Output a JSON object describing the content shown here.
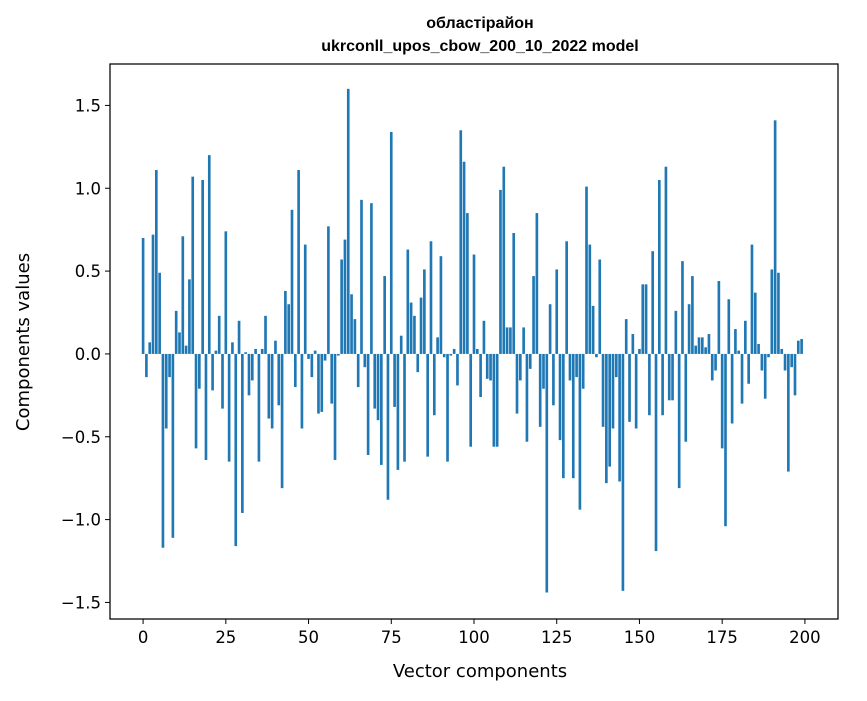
{
  "chart_data": {
    "type": "bar",
    "title": "областірайон",
    "subtitle": "ukrconll_upos_cbow_200_10_2022 model",
    "xlabel": "Vector components",
    "ylabel": "Components values",
    "xlim": [
      -10,
      210
    ],
    "ylim": [
      -1.6,
      1.75
    ],
    "xticks": [
      0,
      25,
      50,
      75,
      100,
      125,
      150,
      175,
      200
    ],
    "xtick_labels": [
      "0",
      "25",
      "50",
      "75",
      "100",
      "125",
      "150",
      "175",
      "200"
    ],
    "yticks": [
      -1.5,
      -1.0,
      -0.5,
      0.0,
      0.5,
      1.0,
      1.5
    ],
    "ytick_labels": [
      "−1.5",
      "−1.0",
      "−0.5",
      "0.0",
      "0.5",
      "1.0",
      "1.5"
    ],
    "bar_color": "#1f77b4",
    "grid": false,
    "x": [
      0,
      1,
      2,
      3,
      4,
      5,
      6,
      7,
      8,
      9,
      10,
      11,
      12,
      13,
      14,
      15,
      16,
      17,
      18,
      19,
      20,
      21,
      22,
      23,
      24,
      25,
      26,
      27,
      28,
      29,
      30,
      31,
      32,
      33,
      34,
      35,
      36,
      37,
      38,
      39,
      40,
      41,
      42,
      43,
      44,
      45,
      46,
      47,
      48,
      49,
      50,
      51,
      52,
      53,
      54,
      55,
      56,
      57,
      58,
      59,
      60,
      61,
      62,
      63,
      64,
      65,
      66,
      67,
      68,
      69,
      70,
      71,
      72,
      73,
      74,
      75,
      76,
      77,
      78,
      79,
      80,
      81,
      82,
      83,
      84,
      85,
      86,
      87,
      88,
      89,
      90,
      91,
      92,
      93,
      94,
      95,
      96,
      97,
      98,
      99,
      100,
      101,
      102,
      103,
      104,
      105,
      106,
      107,
      108,
      109,
      110,
      111,
      112,
      113,
      114,
      115,
      116,
      117,
      118,
      119,
      120,
      121,
      122,
      123,
      124,
      125,
      126,
      127,
      128,
      129,
      130,
      131,
      132,
      133,
      134,
      135,
      136,
      137,
      138,
      139,
      140,
      141,
      142,
      143,
      144,
      145,
      146,
      147,
      148,
      149,
      150,
      151,
      152,
      153,
      154,
      155,
      156,
      157,
      158,
      159,
      160,
      161,
      162,
      163,
      164,
      165,
      166,
      167,
      168,
      169,
      170,
      171,
      172,
      173,
      174,
      175,
      176,
      177,
      178,
      179,
      180,
      181,
      182,
      183,
      184,
      185,
      186,
      187,
      188,
      189,
      190,
      191,
      192,
      193,
      194,
      195,
      196,
      197,
      198,
      199
    ],
    "values": [
      0.7,
      -0.14,
      0.07,
      0.72,
      1.11,
      0.49,
      -1.17,
      -0.45,
      -0.14,
      -1.11,
      0.26,
      0.13,
      0.71,
      0.05,
      0.45,
      1.07,
      -0.57,
      -0.21,
      1.05,
      -0.64,
      1.2,
      -0.22,
      0.02,
      0.23,
      -0.33,
      0.74,
      -0.65,
      0.07,
      -1.16,
      0.2,
      -0.96,
      0.01,
      -0.25,
      -0.16,
      0.03,
      -0.65,
      0.03,
      0.23,
      -0.39,
      -0.45,
      0.08,
      -0.31,
      -0.81,
      0.38,
      0.3,
      0.87,
      -0.2,
      1.11,
      -0.45,
      0.66,
      -0.03,
      -0.14,
      0.02,
      -0.36,
      -0.35,
      -0.04,
      0.77,
      -0.3,
      -0.64,
      -0.01,
      0.57,
      0.69,
      1.6,
      0.36,
      0.21,
      -0.2,
      0.93,
      -0.08,
      -0.61,
      0.91,
      -0.33,
      -0.4,
      -0.67,
      0.47,
      -0.88,
      1.34,
      -0.32,
      -0.7,
      0.11,
      -0.65,
      0.63,
      0.31,
      0.23,
      -0.11,
      0.34,
      0.51,
      -0.62,
      0.68,
      -0.37,
      0.1,
      0.59,
      -0.02,
      -0.65,
      -0.01,
      0.03,
      -0.19,
      1.35,
      1.16,
      0.85,
      -0.56,
      0.6,
      0.03,
      -0.26,
      0.2,
      -0.15,
      -0.16,
      -0.56,
      -0.56,
      0.99,
      1.13,
      0.16,
      0.16,
      0.73,
      -0.36,
      -0.16,
      0.16,
      -0.53,
      -0.09,
      0.47,
      0.85,
      -0.44,
      -0.21,
      -1.44,
      0.3,
      -0.31,
      0.51,
      -0.52,
      -0.75,
      0.68,
      -0.16,
      -0.75,
      -0.14,
      -0.94,
      -0.21,
      1.01,
      0.66,
      0.29,
      -0.02,
      0.57,
      -0.44,
      -0.78,
      -0.68,
      -0.45,
      -0.14,
      -0.77,
      -1.43,
      0.21,
      -0.41,
      0.12,
      -0.45,
      0.03,
      0.42,
      0.42,
      -0.37,
      0.62,
      -1.19,
      1.05,
      -0.37,
      1.13,
      -0.28,
      -0.28,
      0.26,
      -0.81,
      0.56,
      -0.53,
      0.3,
      0.47,
      0.05,
      0.1,
      0.1,
      0.04,
      0.12,
      -0.16,
      -0.1,
      0.44,
      -0.57,
      -1.04,
      0.33,
      -0.42,
      0.15,
      0.02,
      -0.3,
      0.2,
      -0.18,
      0.66,
      0.37,
      0.06,
      -0.1,
      -0.27,
      -0.02,
      0.51,
      1.41,
      0.49,
      0.03,
      -0.1,
      -0.71,
      -0.08,
      -0.25,
      0.08,
      0.09
    ]
  }
}
